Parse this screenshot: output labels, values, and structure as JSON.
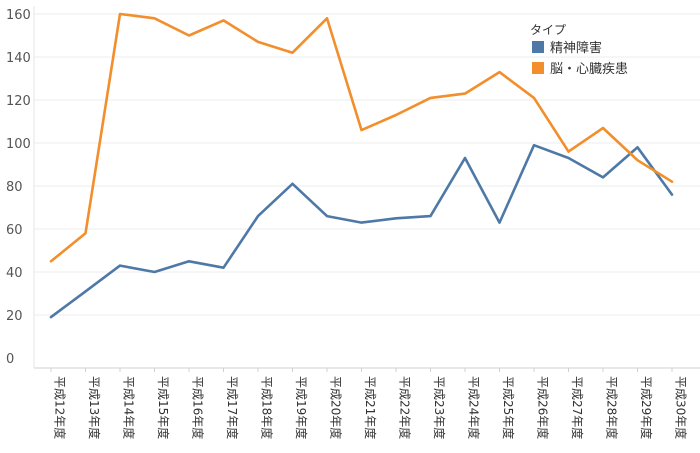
{
  "chart_data": {
    "type": "line",
    "title": "",
    "xlabel": "",
    "ylabel": "",
    "categories": [
      "平成12年度",
      "平成13年度",
      "平成14年度",
      "平成15年度",
      "平成16年度",
      "平成17年度",
      "平成18年度",
      "平成19年度",
      "平成20年度",
      "平成21年度",
      "平成22年度",
      "平成23年度",
      "平成24年度",
      "平成25年度",
      "平成26年度",
      "平成27年度",
      "平成28年度",
      "平成29年度",
      "平成30年度"
    ],
    "yticks": [
      0,
      20,
      40,
      60,
      80,
      100,
      120,
      140,
      160
    ],
    "ylim": [
      -5,
      165
    ],
    "grid": true,
    "legend": {
      "title": "タイプ",
      "placement": "top-right"
    },
    "series": [
      {
        "name": "精神障害",
        "color": "#4e79a7",
        "values": [
          19,
          31,
          43,
          40,
          45,
          42,
          66,
          81,
          66,
          63,
          65,
          66,
          93,
          63,
          99,
          93,
          84,
          98,
          76
        ]
      },
      {
        "name": "脳・心臓疾患",
        "color": "#f28e2b",
        "values": [
          45,
          58,
          160,
          158,
          150,
          157,
          147,
          142,
          158,
          106,
          113,
          121,
          123,
          133,
          121,
          96,
          107,
          92,
          82
        ]
      }
    ]
  }
}
